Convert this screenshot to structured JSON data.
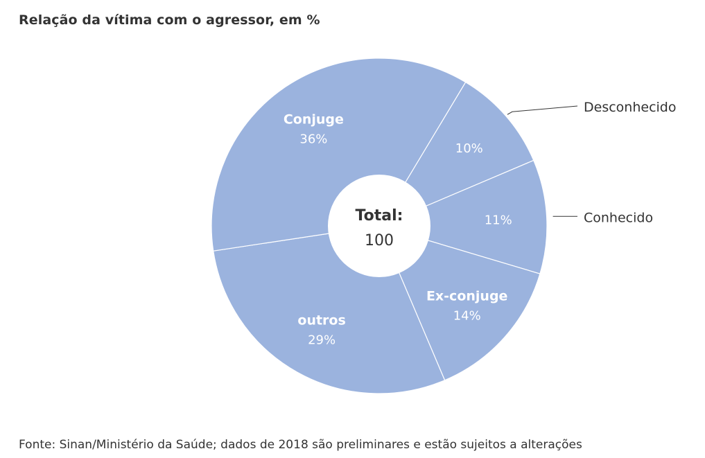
{
  "colors": {
    "slice": "#9bb3de",
    "slice_border": "#ffffff",
    "hole": "#ffffff",
    "text_dark": "#333333",
    "text_light": "#ffffff",
    "leader_line": "#333333"
  },
  "chart_data": {
    "type": "pie",
    "variant": "donut",
    "title": "Relação da vítima com o agressor, em %",
    "center_label": {
      "label": "Total:",
      "value": "100"
    },
    "slices": [
      {
        "label": "Desconhecido",
        "value": 10,
        "value_text": "10%",
        "label_position": "outside"
      },
      {
        "label": "Conhecido",
        "value": 11,
        "value_text": "11%",
        "label_position": "outside"
      },
      {
        "label": "Ex-conjuge",
        "value": 14,
        "value_text": "14%",
        "label_position": "inside"
      },
      {
        "label": "outros",
        "value": 29,
        "value_text": "29%",
        "label_position": "inside"
      },
      {
        "label": "Conjuge",
        "value": 36,
        "value_text": "36%",
        "label_position": "inside"
      }
    ],
    "legend": "none"
  },
  "source": "Fonte: Sinan/Ministério da Saúde; dados de 2018 são preliminares e estão sujeitos a alterações"
}
